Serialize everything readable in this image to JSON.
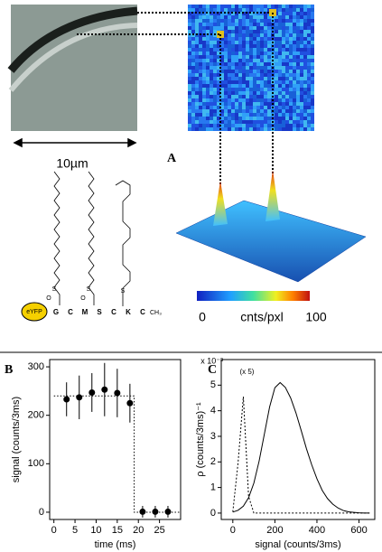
{
  "panel_a": {
    "label": "A",
    "scale_bar": "10µm",
    "colorbar_min": 0,
    "colorbar_unit": "cnts/pxl",
    "colorbar_max": 100,
    "structure": {
      "protein": "eYFP",
      "residues": [
        "G",
        "C",
        "M",
        "S",
        "C",
        "K",
        "C"
      ],
      "terminal": "CH₃",
      "atoms": [
        "O",
        "S",
        "O",
        "S",
        "S"
      ]
    }
  },
  "chart_data": [
    {
      "type": "errorbar",
      "label": "B",
      "xlabel": "time (ms)",
      "ylabel": "signal (counts/3ms)",
      "x": [
        3,
        6,
        9,
        12,
        15,
        18,
        21,
        24,
        27
      ],
      "series": [
        {
          "name": "signal",
          "color": "#000",
          "values": [
            233,
            237,
            247,
            253,
            246,
            225,
            1,
            1,
            1
          ],
          "errors": [
            35,
            45,
            40,
            55,
            50,
            40,
            12,
            12,
            12
          ]
        }
      ],
      "fit": {
        "x": [
          0,
          19,
          19,
          30
        ],
        "values": [
          240,
          240,
          0,
          0
        ]
      },
      "xlim": [
        -1,
        30
      ],
      "ylim": [
        -15,
        315
      ],
      "xticks": [
        0,
        5,
        10,
        15,
        20,
        25
      ],
      "yticks": [
        0,
        100,
        200,
        300
      ]
    },
    {
      "type": "line",
      "label": "C",
      "xlabel": "signal (counts/3ms)",
      "ylabel": "ρ (counts/3ms)⁻¹",
      "annotations": [
        "x 10⁻³",
        "(x 5)"
      ],
      "x": [
        0,
        25,
        50,
        75,
        100,
        125,
        150,
        175,
        200,
        225,
        250,
        275,
        300,
        325,
        350,
        375,
        400,
        425,
        450,
        475,
        500,
        525,
        550,
        575,
        600,
        625,
        650
      ],
      "series": [
        {
          "name": "solid",
          "color": "#000",
          "dash": "none",
          "values": [
            0.04,
            0.11,
            0.27,
            0.6,
            1.17,
            2.03,
            3.09,
            4.15,
            4.9,
            5.1,
            4.91,
            4.5,
            3.92,
            3.23,
            2.52,
            1.89,
            1.34,
            0.89,
            0.57,
            0.35,
            0.2,
            0.1,
            0.05,
            0.03,
            0.01,
            0,
            0
          ]
        },
        {
          "name": "dotted",
          "color": "#000",
          "dash": "2,2",
          "values": [
            0.05,
            1.97,
            4.55,
            0.65,
            0,
            0,
            0,
            0,
            0,
            0,
            0,
            0,
            0,
            0,
            0,
            0,
            0,
            0,
            0,
            0,
            0,
            0,
            0,
            0,
            0,
            0,
            0
          ]
        }
      ],
      "xlim": [
        -55,
        675
      ],
      "ylim": [
        -0.25,
        6
      ],
      "xticks": [
        0,
        200,
        400,
        600
      ],
      "yticks": [
        0,
        1,
        2,
        3,
        4,
        5
      ]
    }
  ]
}
